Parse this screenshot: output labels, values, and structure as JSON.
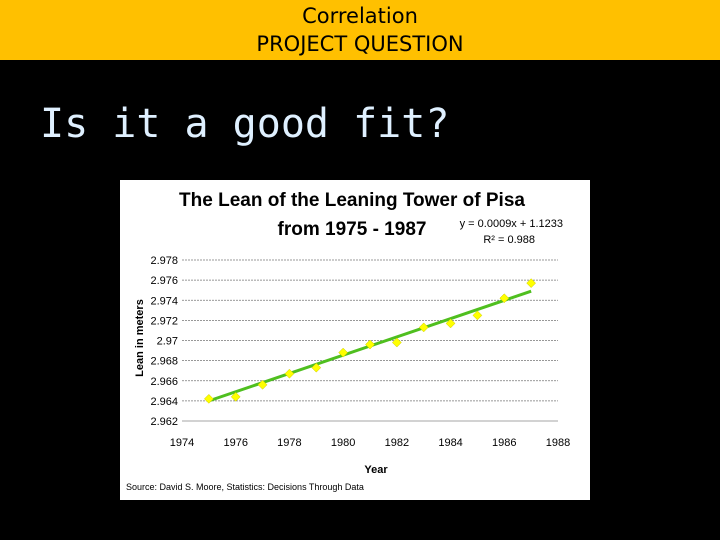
{
  "header": {
    "line1": "Correlation",
    "line2": "PROJECT QUESTION"
  },
  "heading": "Is it a good fit?",
  "chart_data": {
    "type": "scatter",
    "title": [
      "The Lean of the Leaning Tower of Pisa",
      "from 1975 - 1987"
    ],
    "xlabel": "Year",
    "ylabel": "Lean in meters",
    "xlim": [
      1974,
      1988
    ],
    "ylim": [
      2.962,
      2.978
    ],
    "xticks": [
      "1974",
      "1976",
      "1978",
      "1980",
      "1982",
      "1984",
      "1986",
      "1988"
    ],
    "yticks": [
      "2.962",
      "2.964",
      "2.966",
      "2.968",
      "2.97",
      "2.972",
      "2.974",
      "2.976",
      "2.978"
    ],
    "grid": true,
    "points": [
      {
        "x": 1975,
        "y": 2.9642
      },
      {
        "x": 1976,
        "y": 2.9644
      },
      {
        "x": 1977,
        "y": 2.9656
      },
      {
        "x": 1978,
        "y": 2.9667
      },
      {
        "x": 1979,
        "y": 2.9673
      },
      {
        "x": 1980,
        "y": 2.9688
      },
      {
        "x": 1981,
        "y": 2.9696
      },
      {
        "x": 1982,
        "y": 2.9698
      },
      {
        "x": 1983,
        "y": 2.9713
      },
      {
        "x": 1984,
        "y": 2.9717
      },
      {
        "x": 1985,
        "y": 2.9725
      },
      {
        "x": 1986,
        "y": 2.9742
      },
      {
        "x": 1987,
        "y": 2.9757
      }
    ],
    "trendline": {
      "equation": "y = 0.0009x + 1.1233",
      "r2_label": "R² = 0.988",
      "start": {
        "x": 1975,
        "y": 2.964
      },
      "end": {
        "x": 1987,
        "y": 2.9749
      }
    },
    "marker_color": "#ffff00",
    "trendline_color": "#4fbf1f",
    "source": "Source: David S. Moore, Statistics: Decisions Through Data"
  }
}
